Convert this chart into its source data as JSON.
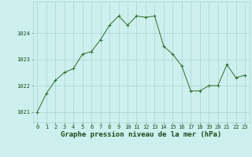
{
  "x": [
    0,
    1,
    2,
    3,
    4,
    5,
    6,
    7,
    8,
    9,
    10,
    11,
    12,
    13,
    14,
    15,
    16,
    17,
    18,
    19,
    20,
    21,
    22,
    23
  ],
  "y": [
    1021.0,
    1021.7,
    1022.2,
    1022.5,
    1022.65,
    1023.2,
    1023.3,
    1023.75,
    1024.3,
    1024.65,
    1024.3,
    1024.65,
    1024.6,
    1024.65,
    1023.5,
    1023.2,
    1022.75,
    1021.8,
    1021.8,
    1022.0,
    1022.0,
    1022.8,
    1022.3,
    1022.4
  ],
  "line_color": "#2d6a2d",
  "marker": "+",
  "marker_size": 3,
  "marker_color": "#2d6a2d",
  "bg_color": "#cdf0ee",
  "grid_color": "#aad4d0",
  "tick_label_color": "#1a4a1a",
  "ylim": [
    1020.6,
    1025.2
  ],
  "yticks": [
    1021,
    1022,
    1023,
    1024
  ],
  "xticks": [
    0,
    1,
    2,
    3,
    4,
    5,
    6,
    7,
    8,
    9,
    10,
    11,
    12,
    13,
    14,
    15,
    16,
    17,
    18,
    19,
    20,
    21,
    22,
    23
  ],
  "title": "Graphe pression niveau de la mer (hPa)",
  "title_fontsize": 6.5,
  "tick_fontsize": 5,
  "title_fontweight": "bold",
  "linewidth": 0.7
}
